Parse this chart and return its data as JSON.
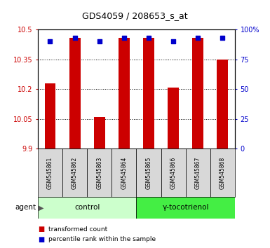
{
  "title": "GDS4059 / 208653_s_at",
  "categories": [
    "GSM545861",
    "GSM545862",
    "GSM545863",
    "GSM545864",
    "GSM545865",
    "GSM545866",
    "GSM545867",
    "GSM545868"
  ],
  "red_values": [
    10.23,
    10.46,
    10.06,
    10.46,
    10.46,
    10.21,
    10.46,
    10.35
  ],
  "blue_values": [
    90,
    93,
    90,
    93,
    93,
    90,
    93,
    93
  ],
  "ylim_left": [
    9.9,
    10.5
  ],
  "ylim_right": [
    0,
    100
  ],
  "yticks_left": [
    9.9,
    10.05,
    10.2,
    10.35,
    10.5
  ],
  "yticks_right": [
    0,
    25,
    50,
    75,
    100
  ],
  "ytick_labels_left": [
    "9.9",
    "10.05",
    "10.2",
    "10.35",
    "10.5"
  ],
  "ytick_labels_right": [
    "0",
    "25",
    "50",
    "75",
    "100%"
  ],
  "control_label": "control",
  "treatment_label": "γ-tocotrienol",
  "agent_label": "agent",
  "legend_red": "transformed count",
  "legend_blue": "percentile rank within the sample",
  "bar_color": "#cc0000",
  "dot_color": "#0000cc",
  "bg_color": "#d8d8d8",
  "control_bg": "#ccffcc",
  "treatment_bg": "#44ee44",
  "title_color": "#000000",
  "left_tick_color": "#cc0000",
  "right_tick_color": "#0000cc",
  "bar_width": 0.45,
  "bar_bottom": 9.9,
  "dot_size": 25
}
